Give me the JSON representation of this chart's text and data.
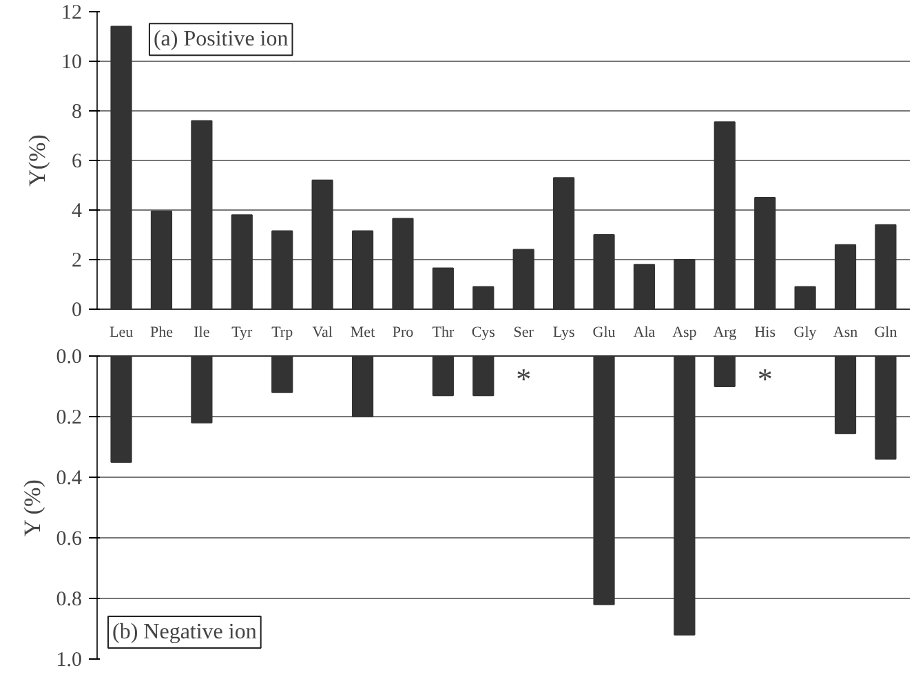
{
  "chart_data": [
    {
      "type": "bar",
      "title": "(a) Positive ion",
      "ylabel": "Y(%)",
      "categories": [
        "Leu",
        "Phe",
        "Ile",
        "Tyr",
        "Trp",
        "Val",
        "Met",
        "Pro",
        "Thr",
        "Cys",
        "Ser",
        "Lys",
        "Glu",
        "Ala",
        "Asp",
        "Arg",
        "His",
        "Gly",
        "Asn",
        "Gln"
      ],
      "values": [
        11.4,
        3.95,
        7.6,
        3.8,
        3.15,
        5.2,
        3.15,
        3.65,
        1.65,
        0.9,
        2.4,
        5.3,
        3.0,
        1.8,
        2.0,
        7.55,
        4.5,
        0.9,
        2.6,
        3.4
      ],
      "color": "#333333",
      "ylim": [
        0,
        12
      ],
      "yticks": [
        0,
        2,
        4,
        6,
        8,
        10,
        12
      ],
      "grid": "y"
    },
    {
      "type": "bar",
      "title": "(b) Negative ion",
      "ylabel": "Y (%)",
      "categories": [
        "Leu",
        "Phe",
        "Ile",
        "Tyr",
        "Trp",
        "Val",
        "Met",
        "Pro",
        "Thr",
        "Cys",
        "Ser",
        "Lys",
        "Glu",
        "Ala",
        "Asp",
        "Arg",
        "His",
        "Gly",
        "Asn",
        "Gln"
      ],
      "values": [
        0.35,
        null,
        0.22,
        null,
        0.12,
        null,
        0.2,
        null,
        0.13,
        0.13,
        0,
        null,
        0.82,
        null,
        0.92,
        0.1,
        0,
        null,
        0.255,
        0.34
      ],
      "color": "#333333",
      "ylim": [
        1.0,
        0.0
      ],
      "yticks": [
        {
          "value": 0,
          "label": "0.0"
        },
        {
          "value": 0.2,
          "label": "0.2"
        },
        {
          "value": 0.4,
          "label": "0.4"
        },
        {
          "value": 0.6,
          "label": "0.6"
        },
        {
          "value": 0.8,
          "label": "0.8"
        },
        {
          "value": 1.0,
          "label": "1.0"
        }
      ],
      "grid": "y",
      "tick_labels": "y",
      "annotations": [
        {
          "text": "*",
          "x": "Ser",
          "y": 0
        },
        {
          "text": "*",
          "x": "His",
          "y": 0
        }
      ]
    }
  ]
}
